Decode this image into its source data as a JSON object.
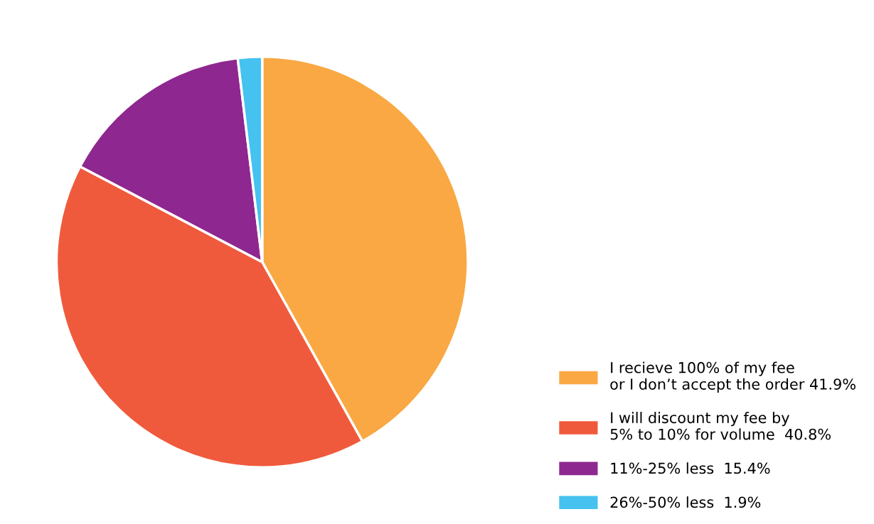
{
  "chart_data": {
    "type": "pie",
    "categories": [
      "I recieve 100% of my fee\nor I don’t accept the order",
      "I will discount my fee by\n5% to 10% for volume ",
      "11%-25% less ",
      "26%-50% less "
    ],
    "values": [
      41.9,
      40.8,
      15.4,
      1.9
    ],
    "value_labels": [
      "41.9%",
      "40.8%",
      "15.4%",
      "1.9%"
    ],
    "colors": [
      "#f9a843",
      "#f05a3c",
      "#8e278f",
      "#45c2ef"
    ],
    "legend": "bottom right"
  }
}
